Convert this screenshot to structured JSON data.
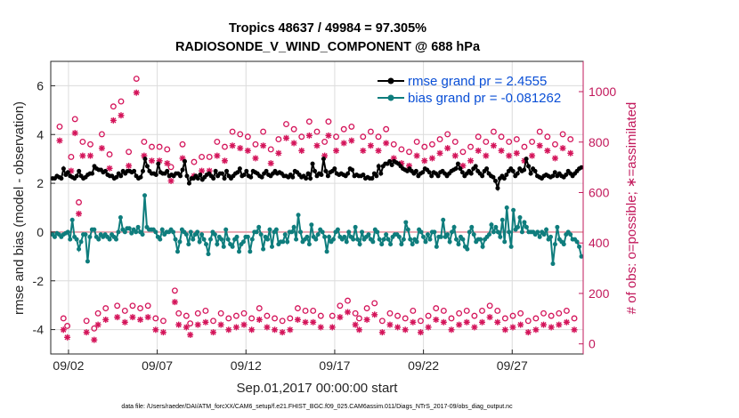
{
  "chart_data": {
    "type": "line",
    "title_line1": "Tropics 48637 / 49984 = 97.305%",
    "title_line2": "RADIOSONDE_V_WIND_COMPONENT @ 688 hPa",
    "ylabel_left": "rmse and bias (model - observation)",
    "ylabel_right": "# of obs: o=possible; ∗=assimilated",
    "xlabel": "Sep.01,2017 00:00:00 start",
    "footnote": "data file: /Users/raeder/DAI/ATM_forcXX/CAM6_setup/f.e21.FHIST_BGC.f09_025.CAM6assim.011/Diags_NTrS_2017-09/obs_diag_output.nc",
    "xlim": [
      0.5,
      30.5
    ],
    "ylim_left": [
      -5,
      7
    ],
    "ylim_right": [
      -40,
      1120
    ],
    "x_ticks": [
      1.5,
      6.5,
      11.5,
      16.5,
      21.5,
      26.5
    ],
    "x_tick_labels": [
      "09/02",
      "09/07",
      "09/12",
      "09/17",
      "09/22",
      "09/27"
    ],
    "y_ticks_left": [
      -4,
      -2,
      0,
      2,
      4,
      6
    ],
    "y_ticks_right": [
      0,
      200,
      400,
      600,
      800,
      1000
    ],
    "grid": true,
    "zero_line": true,
    "legend_location": "top-right",
    "colors": {
      "rmse": "#000000",
      "bias": "#0f7d7d",
      "count": "#d4145a",
      "legend_text": "#0a4fd6",
      "zero_line": "#e8a6b0",
      "right_axis": "#c2185b"
    },
    "series": [
      {
        "name": "rmse grand pr = 2.4555",
        "axis": "left",
        "style": "line-dot",
        "values": [
          2.2,
          2.2,
          2.3,
          2.25,
          2.2,
          2.6,
          2.35,
          2.45,
          2.3,
          2.25,
          2.2,
          2.3,
          2.5,
          2.3,
          2.2,
          2.25,
          2.35,
          2.4,
          2.4,
          2.7,
          2.6,
          2.55,
          2.55,
          2.45,
          2.5,
          2.35,
          2.3,
          2.3,
          2.2,
          2.25,
          2.4,
          2.3,
          2.5,
          2.4,
          2.5,
          2.5,
          2.45,
          2.5,
          2.3,
          2.2,
          2.25,
          2.5,
          3.0,
          2.7,
          2.5,
          2.4,
          2.4,
          2.35,
          2.8,
          2.45,
          2.4,
          2.4,
          2.5,
          2.3,
          2.35,
          2.3,
          2.4,
          2.4,
          2.3,
          2.55,
          2.9,
          2.3,
          2.0,
          2.2,
          2.2,
          2.3,
          2.2,
          2.35,
          2.15,
          2.25,
          2.35,
          2.4,
          2.3,
          2.2,
          2.5,
          2.3,
          2.4,
          2.4,
          2.2,
          2.5,
          2.3,
          2.2,
          2.3,
          2.4,
          2.45,
          2.6,
          2.3,
          2.35,
          2.5,
          2.3,
          2.25,
          2.5,
          2.45,
          2.4,
          2.3,
          2.25,
          2.4,
          2.5,
          2.35,
          2.3,
          2.4,
          2.5,
          2.4,
          2.45,
          2.4,
          2.3,
          2.3,
          2.25,
          2.35,
          2.25,
          2.5,
          2.45,
          2.35,
          2.25,
          2.3,
          2.2,
          2.4,
          2.2,
          2.8,
          2.5,
          2.3,
          2.4,
          2.35,
          3.0,
          2.5,
          2.3,
          2.45,
          2.5,
          2.6,
          2.4,
          2.35,
          2.4,
          2.35,
          2.3,
          2.4,
          2.6,
          2.55,
          2.3,
          2.35,
          2.3,
          2.3,
          2.35,
          2.2,
          2.25,
          2.2,
          2.2,
          2.4,
          2.3,
          2.7,
          2.4,
          2.7,
          2.8,
          2.8,
          2.9,
          2.75,
          2.9,
          2.85,
          2.8,
          2.7,
          2.6,
          2.55,
          2.5,
          2.6,
          2.5,
          2.4,
          2.5,
          2.3,
          2.4,
          2.45,
          2.6,
          2.55,
          2.45,
          2.3,
          2.45,
          2.4,
          2.3,
          2.45,
          2.5,
          2.4,
          2.3,
          2.4,
          2.5,
          2.55,
          2.6,
          2.8,
          2.6,
          2.45,
          2.3,
          2.4,
          2.5,
          2.4,
          2.6,
          2.7,
          2.5,
          2.4,
          2.3,
          2.5,
          2.6,
          2.4,
          2.3,
          2.25,
          2.1,
          1.8,
          2.2,
          2.3,
          2.2,
          2.35,
          2.5,
          2.6,
          2.5,
          2.3,
          2.4,
          2.6,
          2.5,
          2.55,
          3.0,
          2.7,
          2.4,
          2.6,
          2.5,
          2.3,
          2.25,
          2.2,
          2.3,
          2.35,
          2.3,
          2.25,
          2.3,
          2.45,
          2.3,
          2.4,
          2.3,
          2.25,
          2.35,
          2.5,
          2.4,
          2.3,
          2.4,
          2.5,
          2.6,
          2.65
        ]
      },
      {
        "name": "bias grand pr = -0.081262",
        "axis": "left",
        "style": "line-dot",
        "values": [
          -0.1,
          -0.2,
          -0.05,
          -0.1,
          -0.2,
          -0.1,
          -0.05,
          0.0,
          -0.3,
          0.5,
          -0.2,
          -0.3,
          -0.7,
          -0.4,
          -0.1,
          -0.1,
          -1.2,
          -0.2,
          0.1,
          0.1,
          -0.2,
          -0.3,
          -0.1,
          -0.2,
          -0.1,
          -0.2,
          -0.3,
          -0.1,
          -0.2,
          -0.3,
          0.0,
          0.6,
          0.1,
          0.0,
          0.15,
          0.15,
          -0.05,
          0.1,
          0.0,
          0.2,
          0.0,
          -0.1,
          1.5,
          0.2,
          0.1,
          0.1,
          0.1,
          0.0,
          -0.2,
          -0.3,
          0.1,
          -0.1,
          0.0,
          0.0,
          0.1,
          0.0,
          -0.3,
          -0.8,
          -0.4,
          0.1,
          0.0,
          -0.1,
          -0.5,
          0.0,
          -0.3,
          -0.1,
          0.0,
          -0.4,
          -0.1,
          -0.3,
          -0.5,
          -0.9,
          -0.3,
          0.0,
          -0.1,
          -0.5,
          -0.2,
          -0.3,
          -0.6,
          0.1,
          -0.3,
          -0.5,
          -0.6,
          -0.3,
          -0.2,
          -0.8,
          -0.5,
          -0.4,
          -0.2,
          -0.2,
          -0.8,
          -0.3,
          0.0,
          0.0,
          0.2,
          -0.1,
          -0.7,
          -0.2,
          -0.3,
          0.1,
          -0.6,
          0.0,
          0.1,
          -0.5,
          -0.4,
          -0.4,
          -0.1,
          -0.4,
          0.0,
          0.0,
          0.2,
          -0.3,
          0.7,
          0.0,
          -0.4,
          -0.3,
          -0.2,
          -0.5,
          0.3,
          -0.2,
          -0.3,
          -0.1,
          0.1,
          0.0,
          -0.2,
          -0.8,
          -0.2,
          -0.4,
          -0.3,
          0.0,
          0.1,
          -0.2,
          -0.3,
          -0.2,
          -0.4,
          0.0,
          -0.2,
          -0.3,
          0.2,
          -0.3,
          -0.5,
          0.0,
          -0.3,
          -0.2,
          -0.1,
          -0.3,
          -0.4,
          0.1,
          0.0,
          -0.3,
          -0.5,
          -0.3,
          -0.1,
          -0.3,
          -0.5,
          -0.2,
          -0.1,
          -0.1,
          -0.2,
          -0.5,
          -0.3,
          0.4,
          0.1,
          -0.3,
          -0.5,
          -0.3,
          -0.4,
          0.1,
          0.0,
          -0.2,
          -0.4,
          -0.1,
          -0.3,
          0.0,
          0.0,
          -0.6,
          -0.2,
          -0.2,
          0.5,
          -0.2,
          -0.1,
          -0.4,
          0.0,
          0.2,
          -0.3,
          -0.5,
          -0.2,
          -0.3,
          -0.6,
          -0.7,
          0.0,
          0.2,
          -0.1,
          -0.4,
          -0.3,
          -0.3,
          -0.6,
          -0.3,
          -0.2,
          -0.1,
          0.3,
          0.0,
          0.2,
          0.0,
          -0.2,
          0.5,
          -0.4,
          1.0,
          0.0,
          -0.6,
          0.9,
          0.1,
          0.2,
          0.6,
          0.0,
          0.4,
          0.2,
          0.0,
          0.0,
          0.0,
          -0.1,
          0.0,
          -0.2,
          0.0,
          -0.1,
          0.1,
          -0.3,
          -0.2,
          -1.3,
          -0.5,
          0.2,
          -0.3,
          -0.4,
          -0.5,
          -0.1,
          0.0,
          -0.1,
          -0.3,
          -0.3,
          -0.4,
          -0.6,
          -1.0
        ]
      },
      {
        "name": "obs possible",
        "axis": "right",
        "style": "circle",
        "values": [
          840,
          80,
          50,
          720,
          870,
          540,
          780,
          70,
          770,
          40,
          100,
          810,
          120,
          730,
          920,
          130,
          940,
          110,
          740,
          130,
          1030,
          120,
          780,
          130,
          760,
          80,
          760,
          70,
          750,
          680,
          190,
          100,
          770,
          90,
          60,
          700,
          100,
          720,
          110,
          720,
          70,
          780,
          100,
          760,
          80,
          820,
          90,
          810,
          100,
          800,
          80,
          770,
          120,
          820,
          90,
          750,
          80,
          790,
          70,
          850,
          80,
          830,
          120,
          800,
          110,
          860,
          110,
          820,
          90,
          780,
          860,
          90,
          800,
          130,
          830,
          150,
          840,
          100,
          80,
          800,
          120,
          820,
          140,
          800,
          70,
          830,
          100,
          770,
          90,
          750,
          80,
          740,
          110,
          780,
          70,
          760,
          90,
          770,
          120,
          790,
          110,
          810,
          80,
          780,
          100,
          740,
          110,
          760,
          90,
          800,
          110,
          780,
          130,
          820,
          110,
          800,
          80,
          780,
          90,
          790,
          100,
          760,
          70,
          780,
          80,
          820,
          100,
          800,
          90,
          770,
          100,
          810,
          110,
          790,
          80
        ]
      },
      {
        "name": "obs assimilated",
        "axis": "right",
        "style": "star",
        "values": [
          820,
          70,
          40,
          700,
          850,
          530,
          760,
          60,
          760,
          30,
          90,
          790,
          110,
          710,
          900,
          120,
          920,
          100,
          720,
          120,
          1010,
          110,
          760,
          120,
          740,
          70,
          740,
          60,
          730,
          660,
          180,
          90,
          750,
          80,
          50,
          680,
          90,
          700,
          100,
          700,
          60,
          760,
          90,
          740,
          70,
          800,
          80,
          790,
          90,
          780,
          70,
          750,
          110,
          800,
          80,
          730,
          70,
          770,
          60,
          830,
          70,
          810,
          110,
          780,
          100,
          840,
          100,
          800,
          80,
          760,
          840,
          80,
          780,
          120,
          810,
          140,
          820,
          90,
          70,
          780,
          110,
          800,
          130,
          780,
          60,
          810,
          90,
          750,
          80,
          730,
          70,
          720,
          100,
          760,
          60,
          740,
          80,
          750,
          110,
          770,
          100,
          790,
          70,
          760,
          90,
          720,
          100,
          740,
          80,
          780,
          100,
          760,
          120,
          800,
          100,
          780,
          70,
          760,
          80,
          770,
          90,
          740,
          60,
          760,
          70,
          800,
          90,
          780,
          80,
          750,
          90,
          790,
          100,
          770,
          70
        ]
      }
    ],
    "legend_entries": [
      "rmse grand pr = 2.4555",
      "bias grand pr = -0.081262"
    ]
  }
}
